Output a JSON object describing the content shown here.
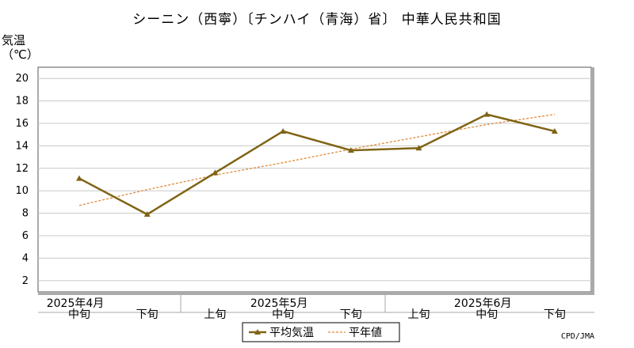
{
  "title": "シーニン（西寧）〔チンハイ（青海）省〕 中華人民共和国",
  "credit": "CPD/JMA",
  "chart_data": {
    "type": "line",
    "ylabel_line1": "気温",
    "ylabel_line2": "（℃）",
    "ylim": [
      1,
      21
    ],
    "yticks": [
      2,
      4,
      6,
      8,
      10,
      12,
      14,
      16,
      18,
      20
    ],
    "grid": true,
    "legend_position": "bottom-center",
    "periods": [
      "中旬",
      "下旬",
      "上旬",
      "中旬",
      "下旬",
      "上旬",
      "中旬",
      "下旬"
    ],
    "months": [
      {
        "label": "2025年4月",
        "anchor_index": 0
      },
      {
        "label": "2025年5月",
        "anchor_index": 3
      },
      {
        "label": "2025年6月",
        "anchor_index": 6
      }
    ],
    "series": [
      {
        "name": "平均気温",
        "color": "#7f6415",
        "style": "solid-triangle-markers",
        "values": [
          11.1,
          7.9,
          11.6,
          15.3,
          13.6,
          13.8,
          16.8,
          15.3
        ]
      },
      {
        "name": "平年値",
        "color": "#e08a3a",
        "style": "dashed",
        "values": [
          8.7,
          10.1,
          11.4,
          12.5,
          13.7,
          14.8,
          15.9,
          16.8
        ]
      }
    ]
  }
}
